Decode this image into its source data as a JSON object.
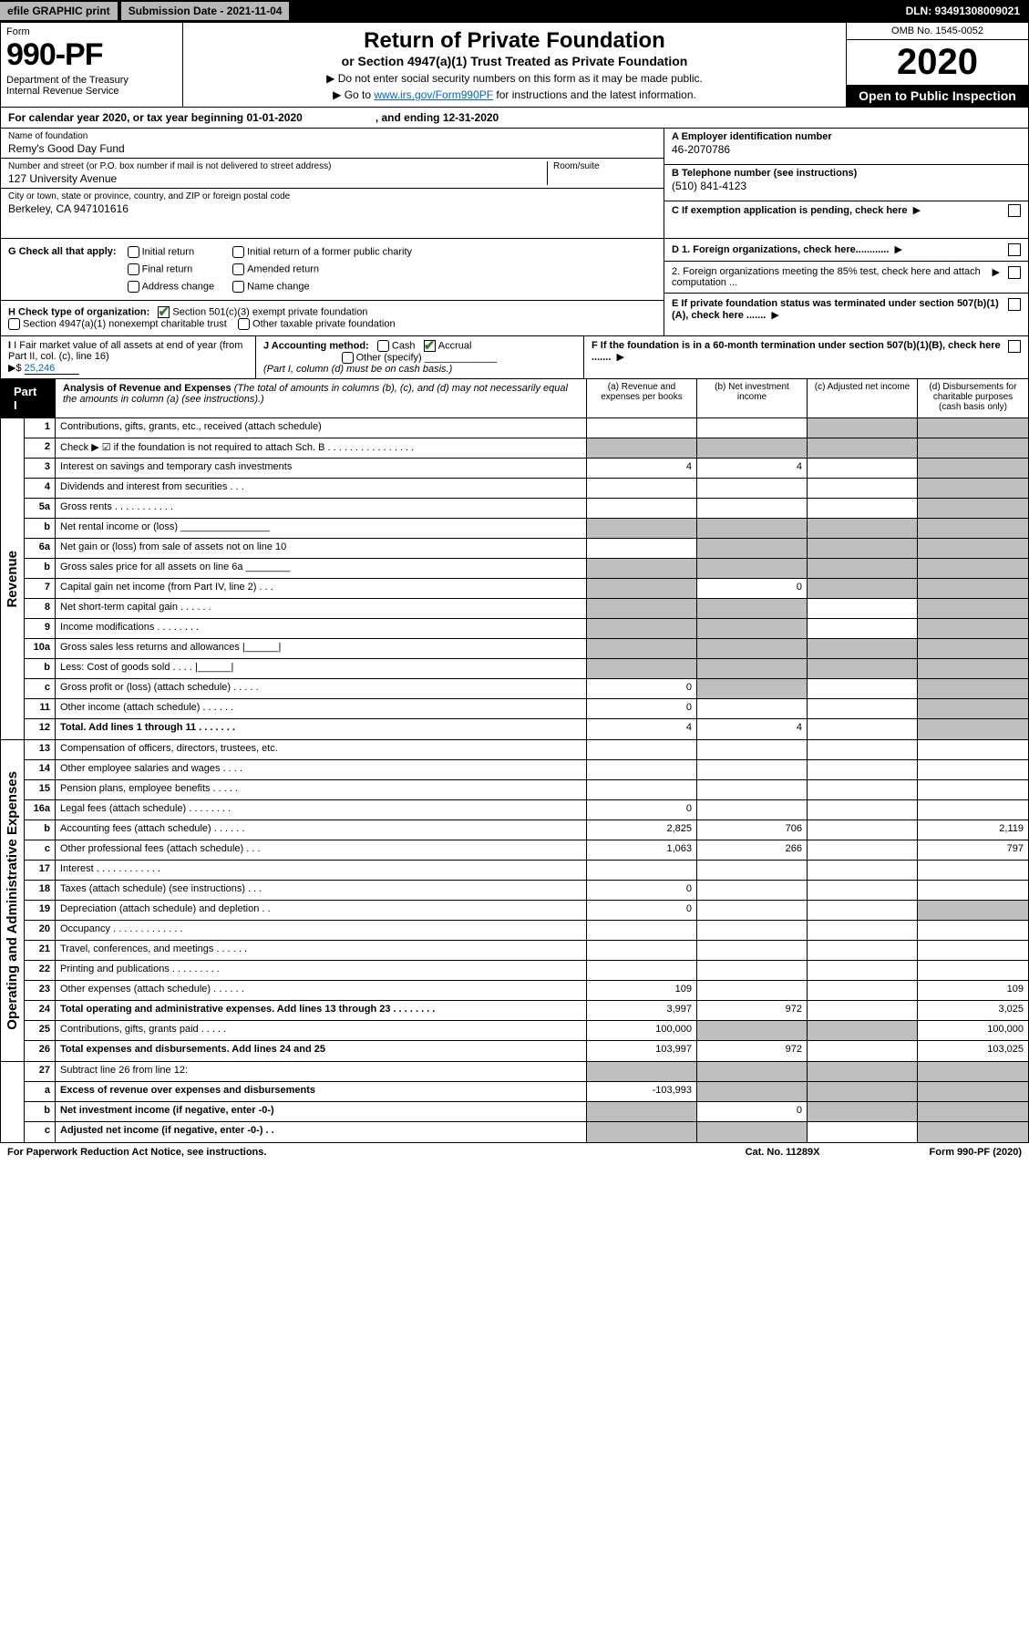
{
  "topbar": {
    "efile": "efile GRAPHIC print",
    "submission": "Submission Date - 2021-11-04",
    "dln": "DLN: 93491308009021"
  },
  "header": {
    "form": "Form",
    "num": "990-PF",
    "dept": "Department of the Treasury\nInternal Revenue Service",
    "title": "Return of Private Foundation",
    "sub": "or Section 4947(a)(1) Trust Treated as Private Foundation",
    "note1": "▶ Do not enter social security numbers on this form as it may be made public.",
    "note2_pre": "▶ Go to ",
    "note2_link": "www.irs.gov/Form990PF",
    "note2_post": " for instructions and the latest information.",
    "omb": "OMB No. 1545-0052",
    "year": "2020",
    "open": "Open to Public Inspection"
  },
  "cal": {
    "text": "For calendar year 2020, or tax year beginning 01-01-2020",
    "ending": ", and ending 12-31-2020"
  },
  "info": {
    "name_label": "Name of foundation",
    "name": "Remy's Good Day Fund",
    "addr_label": "Number and street (or P.O. box number if mail is not delivered to street address)",
    "room_label": "Room/suite",
    "addr": "127 University Avenue",
    "city_label": "City or town, state or province, country, and ZIP or foreign postal code",
    "city": "Berkeley, CA  947101616",
    "ein_label": "A Employer identification number",
    "ein": "46-2070786",
    "tel_label": "B Telephone number (see instructions)",
    "tel": "(510) 841-4123",
    "c_label": "C If exemption application is pending, check here",
    "d1": "D 1. Foreign organizations, check here............",
    "d2": "2. Foreign organizations meeting the 85% test, check here and attach computation ...",
    "e": "E  If private foundation status was terminated under section 507(b)(1)(A), check here .......",
    "f": "F  If the foundation is in a 60-month termination under section 507(b)(1)(B), check here .......",
    "g_label": "G Check all that apply:",
    "g_opts": [
      "Initial return",
      "Initial return of a former public charity",
      "Final return",
      "Amended return",
      "Address change",
      "Name change"
    ],
    "h_label": "H Check type of organization:",
    "h1": "Section 501(c)(3) exempt private foundation",
    "h2": "Section 4947(a)(1) nonexempt charitable trust",
    "h3": "Other taxable private foundation",
    "i_label": "I Fair market value of all assets at end of year (from Part II, col. (c), line 16)",
    "i_val": "25,246",
    "i_pre": "▶$ ",
    "j_label": "J Accounting method:",
    "j_cash": "Cash",
    "j_accrual": "Accrual",
    "j_other": "Other (specify)",
    "j_note": "(Part I, column (d) must be on cash basis.)"
  },
  "part1": {
    "label": "Part I",
    "title": "Analysis of Revenue and Expenses",
    "note": " (The total of amounts in columns (b), (c), and (d) may not necessarily equal the amounts in column (a) (see instructions).)",
    "cols": {
      "a": "(a) Revenue and expenses per books",
      "b": "(b) Net investment income",
      "c": "(c) Adjusted net income",
      "d": "(d) Disbursements for charitable purposes (cash basis only)"
    }
  },
  "sections": {
    "revenue": "Revenue",
    "opex": "Operating and Administrative Expenses"
  },
  "rows": [
    {
      "n": "1",
      "d": "Contributions, gifts, grants, etc., received (attach schedule)",
      "a": "",
      "b": "",
      "c": "g",
      "dd": "g"
    },
    {
      "n": "2",
      "d": "Check ▶ ☑ if the foundation is not required to attach Sch. B   .  .  .  .  .  .  .  .  .  .  .  .  .  .  .  .",
      "a": "g",
      "b": "g",
      "c": "g",
      "dd": "g"
    },
    {
      "n": "3",
      "d": "Interest on savings and temporary cash investments",
      "a": "4",
      "b": "4",
      "c": "",
      "dd": "g"
    },
    {
      "n": "4",
      "d": "Dividends and interest from securities   .   .   .",
      "a": "",
      "b": "",
      "c": "",
      "dd": "g"
    },
    {
      "n": "5a",
      "d": "Gross rents   .   .   .   .   .   .   .   .   .   .   .",
      "a": "",
      "b": "",
      "c": "",
      "dd": "g"
    },
    {
      "n": "b",
      "d": "Net rental income or (loss)  ________________",
      "a": "g",
      "b": "g",
      "c": "g",
      "dd": "g"
    },
    {
      "n": "6a",
      "d": "Net gain or (loss) from sale of assets not on line 10",
      "a": "",
      "b": "g",
      "c": "g",
      "dd": "g"
    },
    {
      "n": "b",
      "d": "Gross sales price for all assets on line 6a ________",
      "a": "g",
      "b": "g",
      "c": "g",
      "dd": "g"
    },
    {
      "n": "7",
      "d": "Capital gain net income (from Part IV, line 2)   .   .   .",
      "a": "g",
      "b": "0",
      "c": "g",
      "dd": "g"
    },
    {
      "n": "8",
      "d": "Net short-term capital gain   .   .   .   .   .   .",
      "a": "g",
      "b": "g",
      "c": "",
      "dd": "g"
    },
    {
      "n": "9",
      "d": "Income modifications   .   .   .   .   .   .   .   .",
      "a": "g",
      "b": "g",
      "c": "",
      "dd": "g"
    },
    {
      "n": "10a",
      "d": "Gross sales less returns and allowances   |______|",
      "a": "g",
      "b": "g",
      "c": "g",
      "dd": "g"
    },
    {
      "n": "b",
      "d": "Less: Cost of goods sold   .   .   .   .   |______|",
      "a": "g",
      "b": "g",
      "c": "g",
      "dd": "g"
    },
    {
      "n": "c",
      "d": "Gross profit or (loss) (attach schedule)   .   .   .   .   .",
      "a": "0",
      "b": "g",
      "c": "",
      "dd": "g"
    },
    {
      "n": "11",
      "d": "Other income (attach schedule)   .   .   .   .   .   .",
      "a": "0",
      "b": "",
      "c": "",
      "dd": "g"
    },
    {
      "n": "12",
      "d": "Total. Add lines 1 through 11   .   .   .   .   .   .   .",
      "a": "4",
      "b": "4",
      "c": "",
      "dd": "g",
      "bold": true
    }
  ],
  "oprows": [
    {
      "n": "13",
      "d": "Compensation of officers, directors, trustees, etc.",
      "a": "",
      "b": "",
      "c": "",
      "dd": ""
    },
    {
      "n": "14",
      "d": "Other employee salaries and wages   .   .   .   .",
      "a": "",
      "b": "",
      "c": "",
      "dd": ""
    },
    {
      "n": "15",
      "d": "Pension plans, employee benefits   .   .   .   .   .",
      "a": "",
      "b": "",
      "c": "",
      "dd": ""
    },
    {
      "n": "16a",
      "d": "Legal fees (attach schedule)  .  .  .  .  .  .  .  .",
      "a": "0",
      "b": "",
      "c": "",
      "dd": ""
    },
    {
      "n": "b",
      "d": "Accounting fees (attach schedule)  .  .  .  .  .  .",
      "a": "2,825",
      "b": "706",
      "c": "",
      "dd": "2,119"
    },
    {
      "n": "c",
      "d": "Other professional fees (attach schedule)   .   .   .",
      "a": "1,063",
      "b": "266",
      "c": "",
      "dd": "797"
    },
    {
      "n": "17",
      "d": "Interest   .   .   .   .   .   .   .   .   .   .   .   .",
      "a": "",
      "b": "",
      "c": "",
      "dd": ""
    },
    {
      "n": "18",
      "d": "Taxes (attach schedule) (see instructions)   .   .   .",
      "a": "0",
      "b": "",
      "c": "",
      "dd": ""
    },
    {
      "n": "19",
      "d": "Depreciation (attach schedule) and depletion   .   .",
      "a": "0",
      "b": "",
      "c": "",
      "dd": "g"
    },
    {
      "n": "20",
      "d": "Occupancy  .  .  .  .  .  .  .  .  .  .  .  .  .",
      "a": "",
      "b": "",
      "c": "",
      "dd": ""
    },
    {
      "n": "21",
      "d": "Travel, conferences, and meetings  .  .  .  .  .  .",
      "a": "",
      "b": "",
      "c": "",
      "dd": ""
    },
    {
      "n": "22",
      "d": "Printing and publications  .  .  .  .  .  .  .  .  .",
      "a": "",
      "b": "",
      "c": "",
      "dd": ""
    },
    {
      "n": "23",
      "d": "Other expenses (attach schedule)  .  .  .  .  .  .",
      "a": "109",
      "b": "",
      "c": "",
      "dd": "109"
    },
    {
      "n": "24",
      "d": "Total operating and administrative expenses. Add lines 13 through 23   .   .   .   .   .   .   .   .",
      "a": "3,997",
      "b": "972",
      "c": "",
      "dd": "3,025",
      "bold": true
    },
    {
      "n": "25",
      "d": "Contributions, gifts, grants paid   .   .   .   .   .",
      "a": "100,000",
      "b": "g",
      "c": "g",
      "dd": "100,000"
    },
    {
      "n": "26",
      "d": "Total expenses and disbursements. Add lines 24 and 25",
      "a": "103,997",
      "b": "972",
      "c": "",
      "dd": "103,025",
      "bold": true
    }
  ],
  "botrows": [
    {
      "n": "27",
      "d": "Subtract line 26 from line 12:",
      "a": "g",
      "b": "g",
      "c": "g",
      "dd": "g"
    },
    {
      "n": "a",
      "d": "Excess of revenue over expenses and disbursements",
      "a": "-103,993",
      "b": "g",
      "c": "g",
      "dd": "g",
      "bold": true
    },
    {
      "n": "b",
      "d": "Net investment income (if negative, enter -0-)",
      "a": "g",
      "b": "0",
      "c": "g",
      "dd": "g",
      "bold": true
    },
    {
      "n": "c",
      "d": "Adjusted net income (if negative, enter -0-)   .   .",
      "a": "g",
      "b": "g",
      "c": "",
      "dd": "g",
      "bold": true
    }
  ],
  "footer": {
    "left": "For Paperwork Reduction Act Notice, see instructions.",
    "mid": "Cat. No. 11289X",
    "right": "Form 990-PF (2020)"
  },
  "colors": {
    "grey": "#bfbfbf",
    "link": "#0066cc",
    "check": "#2e7d32"
  }
}
